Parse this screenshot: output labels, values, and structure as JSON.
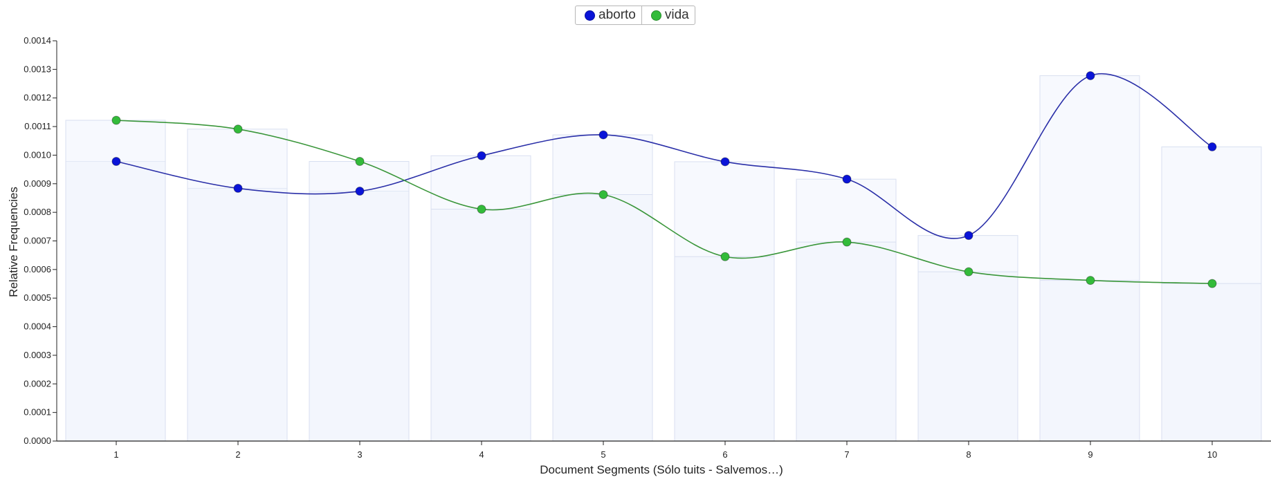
{
  "chart_data": {
    "type": "line",
    "x": [
      1,
      2,
      3,
      4,
      5,
      6,
      7,
      8,
      9,
      10
    ],
    "xlabel": "Document Segments (Sólo tuits - Salvemos…)",
    "ylabel": "Relative Frequencies",
    "ylim": [
      0,
      0.0014
    ],
    "yticks": [
      "0.0000",
      "0.0001",
      "0.0002",
      "0.0003",
      "0.0004",
      "0.0005",
      "0.0006",
      "0.0007",
      "0.0008",
      "0.0009",
      "0.0010",
      "0.0011",
      "0.0012",
      "0.0013",
      "0.0014"
    ],
    "xticks": [
      "1",
      "2",
      "3",
      "4",
      "5",
      "6",
      "7",
      "8",
      "9",
      "10"
    ],
    "legend_position": "top-center",
    "grid": false,
    "bars_behind_lines": true,
    "series": [
      {
        "name": "aborto",
        "color": "#0a14d8",
        "line_color": "#2a2fa8",
        "values": [
          0.000978,
          0.000884,
          0.000874,
          0.000998,
          0.001071,
          0.000977,
          0.000916,
          0.000719,
          0.001278,
          0.001029
        ]
      },
      {
        "name": "vida",
        "color": "#33bb3a",
        "line_color": "#3a963a",
        "values": [
          0.001122,
          0.001091,
          0.000978,
          0.000811,
          0.000862,
          0.000645,
          0.000696,
          0.000592,
          0.000562,
          0.000551
        ]
      }
    ]
  }
}
